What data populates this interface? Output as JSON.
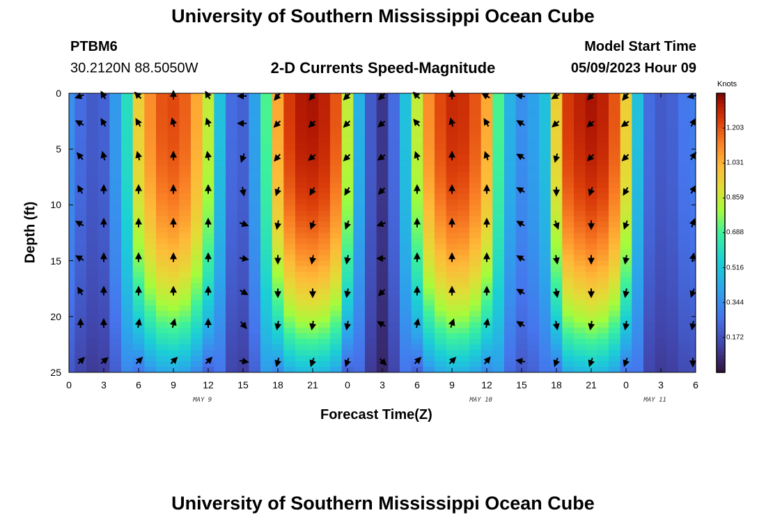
{
  "header": {
    "title": "University of Southern Mississippi Ocean Cube",
    "station": "PTBM6",
    "coords": "30.2120N  88.5050W",
    "plot_title": "2-D Currents Speed-Magnitude",
    "model_start_label": "Model Start Time",
    "model_start_value": "05/09/2023 Hour 09"
  },
  "footer": {
    "title": "University of Southern Mississippi Ocean Cube"
  },
  "chart_data": {
    "type": "heatmap",
    "title": "2-D Currents Speed-Magnitude",
    "xlabel": "Forecast Time(Z)",
    "ylabel": "Depth (ft)",
    "x_range_hours": [
      0,
      54
    ],
    "ylim": [
      0,
      25
    ],
    "x_ticks": [
      "0",
      "3",
      "6",
      "9",
      "12",
      "15",
      "18",
      "21",
      "0",
      "3",
      "6",
      "9",
      "12",
      "15",
      "18",
      "21",
      "0",
      "3",
      "6"
    ],
    "y_ticks": [
      "0",
      "5",
      "10",
      "15",
      "20",
      "25"
    ],
    "date_labels": [
      {
        "label": "MAY 9",
        "hour": 11.5
      },
      {
        "label": "MAY 10",
        "hour": 35.5
      },
      {
        "label": "MAY 11",
        "hour": 50.5
      }
    ],
    "colorbar": {
      "label": "Knots",
      "ticks": [
        "1.203",
        "1.031",
        "0.859",
        "0.688",
        "0.516",
        "0.344",
        "0.172"
      ],
      "min": 0.0,
      "max": 1.375
    },
    "surface_speed_by_hour": [
      {
        "hour": 0,
        "speed": 0.35
      },
      {
        "hour": 1,
        "speed": 0.25
      },
      {
        "hour": 2,
        "speed": 0.2
      },
      {
        "hour": 3,
        "speed": 0.22
      },
      {
        "hour": 4,
        "speed": 0.38
      },
      {
        "hour": 5,
        "speed": 0.6
      },
      {
        "hour": 6,
        "speed": 0.95
      },
      {
        "hour": 7,
        "speed": 1.1
      },
      {
        "hour": 8,
        "speed": 1.2
      },
      {
        "hour": 9,
        "speed": 1.22
      },
      {
        "hour": 10,
        "speed": 1.18
      },
      {
        "hour": 11,
        "speed": 1.05
      },
      {
        "hour": 12,
        "speed": 0.85
      },
      {
        "hour": 13,
        "speed": 0.5
      },
      {
        "hour": 14,
        "speed": 0.25
      },
      {
        "hour": 15,
        "speed": 0.22
      },
      {
        "hour": 16,
        "speed": 0.4
      },
      {
        "hour": 17,
        "speed": 0.7
      },
      {
        "hour": 18,
        "speed": 1.05
      },
      {
        "hour": 19,
        "speed": 1.25
      },
      {
        "hour": 20,
        "speed": 1.32
      },
      {
        "hour": 21,
        "speed": 1.33
      },
      {
        "hour": 22,
        "speed": 1.3
      },
      {
        "hour": 23,
        "speed": 1.2
      },
      {
        "hour": 24,
        "speed": 0.85
      },
      {
        "hour": 25,
        "speed": 0.45
      },
      {
        "hour": 26,
        "speed": 0.2
      },
      {
        "hour": 27,
        "speed": 0.1
      },
      {
        "hour": 28,
        "speed": 0.25
      },
      {
        "hour": 29,
        "speed": 0.5
      },
      {
        "hour": 30,
        "speed": 0.85
      },
      {
        "hour": 31,
        "speed": 1.1
      },
      {
        "hour": 32,
        "speed": 1.22
      },
      {
        "hour": 33,
        "speed": 1.28
      },
      {
        "hour": 34,
        "speed": 1.27
      },
      {
        "hour": 35,
        "speed": 1.2
      },
      {
        "hour": 36,
        "speed": 1.05
      },
      {
        "hour": 37,
        "speed": 0.7
      },
      {
        "hour": 38,
        "speed": 0.45
      },
      {
        "hour": 39,
        "speed": 0.35
      },
      {
        "hour": 40,
        "speed": 0.4
      },
      {
        "hour": 41,
        "speed": 0.5
      },
      {
        "hour": 42,
        "speed": 0.95
      },
      {
        "hour": 43,
        "speed": 1.25
      },
      {
        "hour": 44,
        "speed": 1.3
      },
      {
        "hour": 45,
        "speed": 1.33
      },
      {
        "hour": 46,
        "speed": 1.3
      },
      {
        "hour": 47,
        "speed": 1.2
      },
      {
        "hour": 48,
        "speed": 0.95
      },
      {
        "hour": 49,
        "speed": 0.5
      },
      {
        "hour": 50,
        "speed": 0.25
      },
      {
        "hour": 51,
        "speed": 0.2
      },
      {
        "hour": 52,
        "speed": 0.22
      },
      {
        "hour": 53,
        "speed": 0.28
      },
      {
        "hour": 54,
        "speed": 0.3
      }
    ],
    "arrow_hours": [
      1,
      3,
      6,
      9,
      12,
      15,
      18,
      21,
      24,
      27,
      30,
      33,
      36,
      39,
      42,
      45,
      48,
      54
    ],
    "arrow_depths_ft": [
      0,
      2.7,
      5.7,
      8.7,
      11.7,
      14.8,
      17.8,
      20.7,
      24.0
    ],
    "arrow_direction_deg": [
      [
        250,
        330,
        315,
        0,
        330,
        270,
        220,
        220,
        225,
        225,
        315,
        0,
        300,
        280,
        240,
        225,
        220,
        260
      ],
      [
        300,
        330,
        330,
        345,
        340,
        270,
        225,
        225,
        225,
        230,
        320,
        345,
        330,
        300,
        230,
        230,
        235,
        30
      ],
      [
        320,
        345,
        345,
        0,
        350,
        200,
        220,
        230,
        225,
        235,
        340,
        0,
        340,
        300,
        195,
        225,
        225,
        35
      ],
      [
        330,
        0,
        0,
        0,
        0,
        170,
        200,
        210,
        210,
        225,
        0,
        0,
        0,
        300,
        180,
        200,
        210,
        30
      ],
      [
        300,
        0,
        0,
        0,
        0,
        110,
        190,
        200,
        200,
        250,
        0,
        0,
        0,
        300,
        160,
        180,
        200,
        20
      ],
      [
        300,
        0,
        0,
        0,
        0,
        100,
        180,
        190,
        190,
        270,
        0,
        0,
        0,
        300,
        170,
        180,
        190,
        10
      ],
      [
        330,
        0,
        0,
        0,
        0,
        120,
        180,
        180,
        190,
        225,
        0,
        0,
        0,
        300,
        170,
        180,
        190,
        200
      ],
      [
        0,
        0,
        10,
        15,
        0,
        140,
        190,
        190,
        190,
        300,
        10,
        20,
        10,
        300,
        170,
        190,
        190,
        190
      ],
      [
        45,
        50,
        45,
        45,
        45,
        100,
        195,
        200,
        200,
        135,
        45,
        45,
        40,
        280,
        200,
        200,
        200,
        180
      ]
    ]
  }
}
